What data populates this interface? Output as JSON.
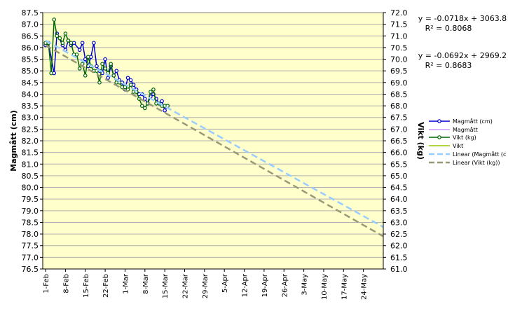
{
  "chart_data": {
    "type": "line",
    "title": "",
    "xlabel": "",
    "y_left": {
      "label": "Magmått (cm)",
      "min": 76.5,
      "max": 87.5,
      "step": 0.5
    },
    "y_right": {
      "label": "Vikt (kg)",
      "min": 61.0,
      "max": 72.0,
      "step": 0.5
    },
    "x_range": [
      "2007-01-31",
      "2007-05-31"
    ],
    "x_ticks": [
      "1-Feb",
      "8-Feb",
      "15-Feb",
      "22-Feb",
      "1-Mar",
      "8-Mar",
      "15-Mar",
      "22-Mar",
      "29-Mar",
      "5-Apr",
      "12-Apr",
      "19-Apr",
      "26-Apr",
      "3-May",
      "10-May",
      "17-May",
      "24-May"
    ],
    "grid": "horizontal",
    "background": "#ffffcc",
    "legend_position": "right",
    "series": [
      {
        "name": "Magmått (cm)",
        "axis": "left",
        "color": "#0000cc",
        "marker": "circle",
        "x": [
          "2007-02-01",
          "2007-02-02",
          "2007-02-04",
          "2007-02-05",
          "2007-02-07",
          "2007-02-08",
          "2007-02-09",
          "2007-02-10",
          "2007-02-11",
          "2007-02-13",
          "2007-02-14",
          "2007-02-15",
          "2007-02-16",
          "2007-02-17",
          "2007-02-18",
          "2007-02-19",
          "2007-02-20",
          "2007-02-21",
          "2007-02-22",
          "2007-02-23",
          "2007-02-24",
          "2007-02-25",
          "2007-02-26",
          "2007-02-27",
          "2007-02-28",
          "2007-03-01",
          "2007-03-02",
          "2007-03-03",
          "2007-03-04",
          "2007-03-05",
          "2007-03-06",
          "2007-03-07",
          "2007-03-08",
          "2007-03-09",
          "2007-03-10",
          "2007-03-11",
          "2007-03-12",
          "2007-03-13",
          "2007-03-14",
          "2007-03-15",
          "2007-03-16"
        ],
        "values": [
          86.1,
          86.2,
          84.9,
          86.6,
          86.1,
          85.9,
          86.3,
          86.1,
          86.2,
          85.9,
          86.2,
          85.5,
          85.2,
          85.6,
          86.2,
          85.2,
          85.0,
          84.9,
          85.5,
          84.7,
          85.2,
          84.8,
          85.0,
          84.6,
          84.5,
          84.2,
          84.7,
          84.6,
          84.4,
          84.2,
          84.0,
          84.0,
          83.8,
          83.6,
          83.9,
          84.0,
          83.8,
          83.6,
          83.7,
          83.3,
          83.5
        ]
      },
      {
        "name": "Magmått",
        "axis": "left",
        "color": "#cc99ff",
        "trend": {
          "slope": -0.0718,
          "intercept": 3063.8
        },
        "x": [
          "2007-01-31",
          "2007-05-31"
        ]
      },
      {
        "name": "Vikt (kg)",
        "axis": "right",
        "color": "#006600",
        "marker": "circle",
        "x": [
          "2007-02-01",
          "2007-02-02",
          "2007-02-03",
          "2007-02-04",
          "2007-02-05",
          "2007-02-06",
          "2007-02-07",
          "2007-02-08",
          "2007-02-09",
          "2007-02-10",
          "2007-02-11",
          "2007-02-12",
          "2007-02-13",
          "2007-02-14",
          "2007-02-15",
          "2007-02-16",
          "2007-02-17",
          "2007-02-18",
          "2007-02-19",
          "2007-02-20",
          "2007-02-21",
          "2007-02-22",
          "2007-02-23",
          "2007-02-24",
          "2007-02-25",
          "2007-02-26",
          "2007-02-27",
          "2007-02-28",
          "2007-03-01",
          "2007-03-02",
          "2007-03-03",
          "2007-03-04",
          "2007-03-05",
          "2007-03-06",
          "2007-03-07",
          "2007-03-08",
          "2007-03-09",
          "2007-03-10",
          "2007-03-11",
          "2007-03-12",
          "2007-03-13",
          "2007-03-14",
          "2007-03-15",
          "2007-03-16"
        ],
        "values": [
          70.7,
          70.7,
          69.4,
          71.7,
          71.0,
          70.9,
          70.7,
          71.1,
          70.8,
          70.7,
          70.2,
          70.2,
          69.6,
          69.8,
          69.3,
          70.1,
          69.7,
          69.5,
          69.5,
          69.0,
          69.8,
          69.6,
          69.4,
          69.8,
          69.3,
          69.0,
          69.0,
          68.8,
          68.8,
          68.7,
          68.9,
          68.6,
          68.6,
          68.3,
          68.0,
          67.9,
          68.1,
          68.6,
          68.7,
          68.1,
          68.1,
          68.0,
          68.0,
          68.0
        ]
      },
      {
        "name": "Vikt",
        "axis": "right",
        "color": "#99cc00",
        "trend": {
          "slope": -0.0692,
          "intercept": 2969.2
        },
        "x": [
          "2007-01-31",
          "2007-05-31"
        ]
      },
      {
        "name": "Linear (Magmått (c",
        "axis": "left",
        "color": "#99ccff",
        "dashed": true,
        "x": [
          "2007-02-01",
          "2007-05-31"
        ],
        "values": [
          86.3,
          78.3
        ]
      },
      {
        "name": "Linear (Vikt (kg))",
        "axis": "right",
        "color": "#999977",
        "dashed": true,
        "x": [
          "2007-02-01",
          "2007-05-31"
        ],
        "values": [
          70.6,
          62.4
        ]
      }
    ],
    "annotations": [
      {
        "line1": "y = -0.0718x + 3063.8",
        "line2": "R² = 0.8068"
      },
      {
        "line1": "y = -0.0692x + 2969.2",
        "line2": "R² = 0.8683"
      }
    ]
  }
}
